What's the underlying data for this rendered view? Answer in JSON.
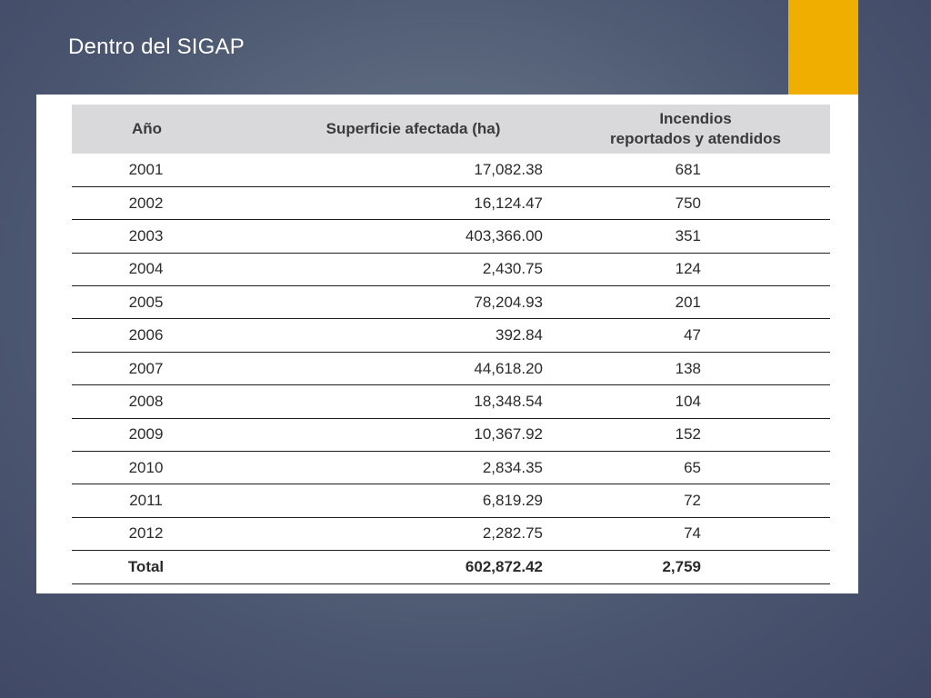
{
  "slide": {
    "title": "Dentro del SIGAP",
    "accent_color": "#f0ae00"
  },
  "table": {
    "headers": {
      "year": "Año",
      "area": "Superficie afectada (ha)",
      "fires_line1": "Incendios",
      "fires_line2": "reportados y atendidos"
    },
    "rows": [
      {
        "year": "2001",
        "area": "17,082.38",
        "fires": "681"
      },
      {
        "year": "2002",
        "area": "16,124.47",
        "fires": "750"
      },
      {
        "year": "2003",
        "area": "403,366.00",
        "fires": "351"
      },
      {
        "year": "2004",
        "area": "2,430.75",
        "fires": "124"
      },
      {
        "year": "2005",
        "area": "78,204.93",
        "fires": "201"
      },
      {
        "year": "2006",
        "area": "392.84",
        "fires": "47"
      },
      {
        "year": "2007",
        "area": "44,618.20",
        "fires": "138"
      },
      {
        "year": "2008",
        "area": "18,348.54",
        "fires": "104"
      },
      {
        "year": "2009",
        "area": "10,367.92",
        "fires": "152"
      },
      {
        "year": "2010",
        "area": "2,834.35",
        "fires": "65"
      },
      {
        "year": "2011",
        "area": "6,819.29",
        "fires": "72"
      },
      {
        "year": "2012",
        "area": "2,282.75",
        "fires": "74"
      }
    ],
    "total": {
      "label": "Total",
      "area": "602,872.42",
      "fires": "2,759"
    }
  }
}
